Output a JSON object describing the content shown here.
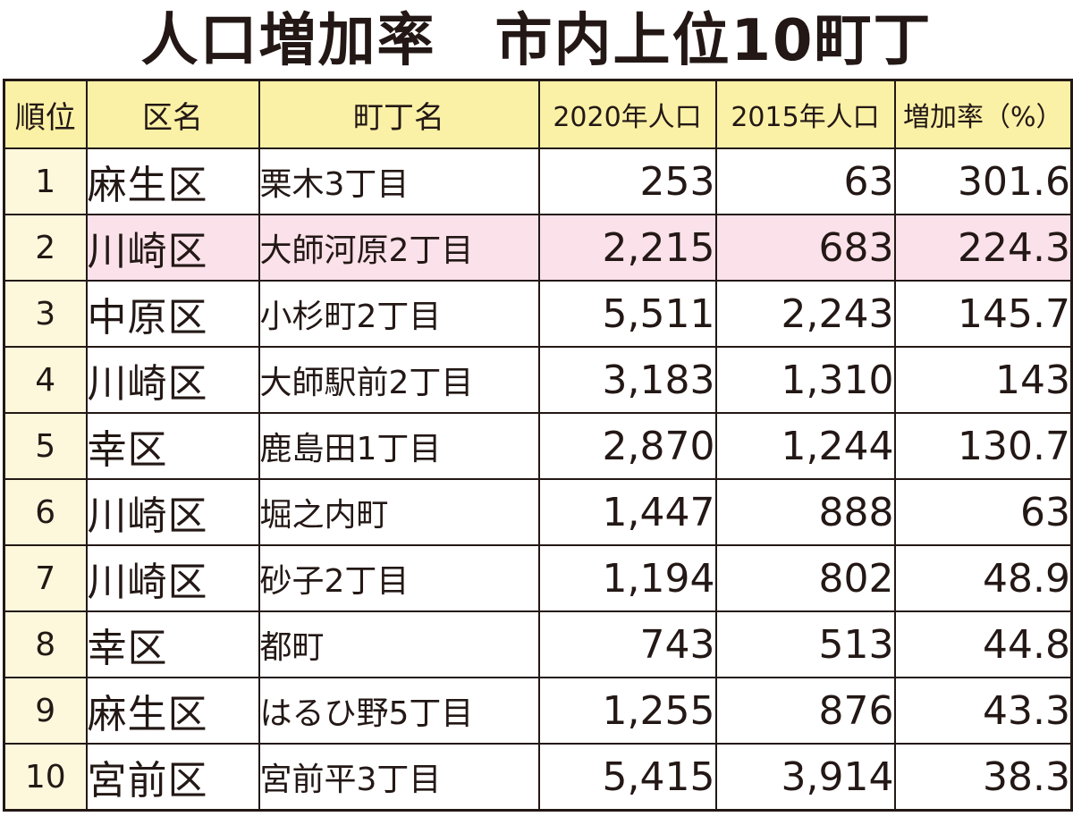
{
  "title": "人口増加率　市内上位10町丁",
  "headers": {
    "rank": "順位",
    "ward": "区名",
    "town": "町丁名",
    "pop2020": "2020年人口",
    "pop2015": "2015年人口",
    "rate": "増加率（%）"
  },
  "colors": {
    "header_bg": "#fbf1a6",
    "rank_bg": "#fdf8dc",
    "highlight_bg": "#fae1ea",
    "border": "#231815"
  },
  "highlighted_rank": "2",
  "rows": [
    {
      "rank": "1",
      "ward": "麻生区",
      "town": "栗木3丁目",
      "pop2020": "253",
      "pop2015": "63",
      "rate": "301.6"
    },
    {
      "rank": "2",
      "ward": "川崎区",
      "town": "大師河原2丁目",
      "pop2020": "2,215",
      "pop2015": "683",
      "rate": "224.3"
    },
    {
      "rank": "3",
      "ward": "中原区",
      "town": "小杉町2丁目",
      "pop2020": "5,511",
      "pop2015": "2,243",
      "rate": "145.7"
    },
    {
      "rank": "4",
      "ward": "川崎区",
      "town": "大師駅前2丁目",
      "pop2020": "3,183",
      "pop2015": "1,310",
      "rate": "143"
    },
    {
      "rank": "5",
      "ward": "幸区",
      "town": "鹿島田1丁目",
      "pop2020": "2,870",
      "pop2015": "1,244",
      "rate": "130.7"
    },
    {
      "rank": "6",
      "ward": "川崎区",
      "town": "堀之内町",
      "pop2020": "1,447",
      "pop2015": "888",
      "rate": "63"
    },
    {
      "rank": "7",
      "ward": "川崎区",
      "town": "砂子2丁目",
      "pop2020": "1,194",
      "pop2015": "802",
      "rate": "48.9"
    },
    {
      "rank": "8",
      "ward": "幸区",
      "town": "都町",
      "pop2020": "743",
      "pop2015": "513",
      "rate": "44.8"
    },
    {
      "rank": "9",
      "ward": "麻生区",
      "town": "はるひ野5丁目",
      "pop2020": "1,255",
      "pop2015": "876",
      "rate": "43.3"
    },
    {
      "rank": "10",
      "ward": "宮前区",
      "town": "宮前平3丁目",
      "pop2020": "5,415",
      "pop2015": "3,914",
      "rate": "38.3"
    }
  ]
}
